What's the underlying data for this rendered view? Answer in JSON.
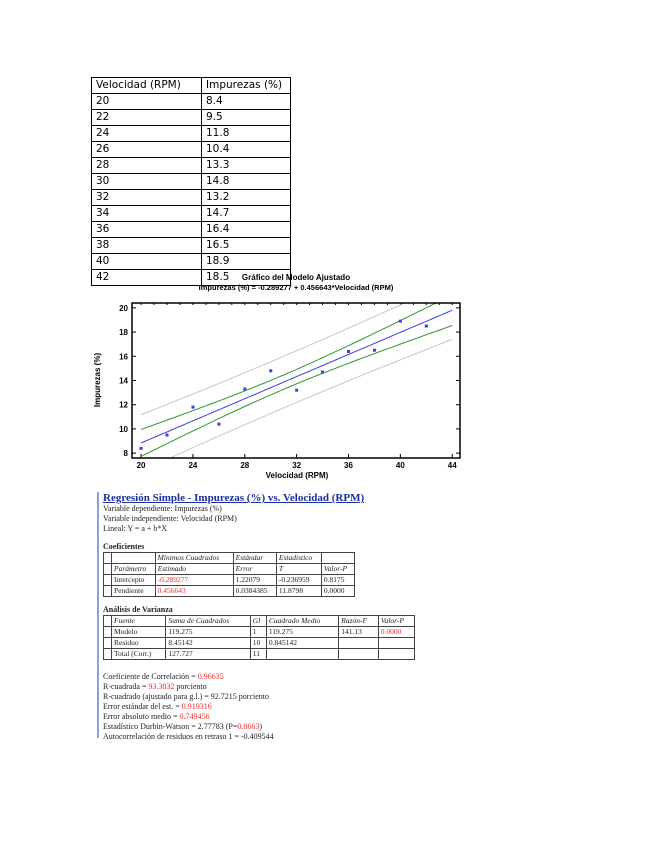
{
  "data_table": {
    "headers": [
      "Velocidad (RPM)",
      "Impurezas (%)"
    ],
    "rows": [
      [
        "20",
        "8.4"
      ],
      [
        "22",
        "9.5"
      ],
      [
        "24",
        "11.8"
      ],
      [
        "26",
        "10.4"
      ],
      [
        "28",
        "13.3"
      ],
      [
        "30",
        "14.8"
      ],
      [
        "32",
        "13.2"
      ],
      [
        "34",
        "14.7"
      ],
      [
        "36",
        "16.4"
      ],
      [
        "38",
        "16.5"
      ],
      [
        "40",
        "18.9"
      ],
      [
        "42",
        "18.5"
      ]
    ]
  },
  "chart_data": {
    "type": "scatter",
    "title": "Gráfico del Modelo Ajustado",
    "subtitle": "Impurezas (%) = -0.289277 + 0.456643*Velocidad (RPM)",
    "xlabel": "Velocidad (RPM)",
    "ylabel": "Impurezas (%)",
    "xlim": [
      19.3,
      44.6
    ],
    "ylim": [
      7.6,
      20.4
    ],
    "xticks": [
      20,
      24,
      28,
      32,
      36,
      40,
      44
    ],
    "yticks": [
      8,
      10,
      12,
      14,
      16,
      18,
      20
    ],
    "x": [
      20,
      22,
      24,
      26,
      28,
      30,
      32,
      34,
      36,
      38,
      40,
      42
    ],
    "y": [
      8.4,
      9.5,
      11.8,
      10.4,
      13.3,
      14.8,
      13.2,
      14.7,
      16.4,
      16.5,
      18.9,
      18.5
    ],
    "fit": {
      "intercept": -0.289277,
      "slope": 0.456643,
      "color": "#3b3bf0"
    },
    "confidence_band_color": "#2f9a2f",
    "prediction_band_color": "#c8c8c8",
    "point_color": "#3b3bf0"
  },
  "regression": {
    "title": "Regresión Simple - Impurezas (%) vs. Velocidad (RPM)",
    "lines": [
      "Variable dependiente: Impurezas (%)",
      "Variable independiente: Velocidad (RPM)",
      "Lineal: Y = a + b*X"
    ],
    "coef_title": "Coeficientes",
    "coef_header1": [
      "",
      "Mínimos Cuadrados",
      "Estándar",
      "Estadístico",
      ""
    ],
    "coef_header2": [
      "Parámetro",
      "Estimado",
      "Error",
      "T",
      "Valor-P"
    ],
    "coef_rows": [
      [
        "Intercepto",
        "-0.289277",
        "1.22079",
        "-0.236959",
        "0.8175"
      ],
      [
        "Pendiente",
        "0.456643",
        "0.0384385",
        "11.8798",
        "0.0000"
      ]
    ],
    "anova_title": "Análisis de Varianza",
    "anova_header": [
      "Fuente",
      "Suma de Cuadrados",
      "Gl",
      "Cuadrado Medio",
      "Razón-F",
      "Valor-P"
    ],
    "anova_rows": [
      [
        "Modelo",
        "119.275",
        "1",
        "119.275",
        "141.13",
        "0.0000"
      ],
      [
        "Residuo",
        "8.45142",
        "10",
        "0.845142",
        "",
        ""
      ],
      [
        "Total (Corr.)",
        "127.727",
        "11",
        "",
        "",
        ""
      ]
    ],
    "stats": [
      {
        "label": "Coeficiente de Correlación = ",
        "value": "0.96635",
        "suffix": ""
      },
      {
        "label": "R-cuadrada = ",
        "value": "93.3832",
        "suffix": " porciento"
      },
      {
        "label": "R-cuadrado (ajustado para g.l.) = 92.7215 porciento",
        "value": "",
        "suffix": ""
      },
      {
        "label": "Error estándar del est. = ",
        "value": "0.919316",
        "suffix": ""
      },
      {
        "label": "Error absoluto medio = ",
        "value": "0.749456",
        "suffix": ""
      },
      {
        "label": "Estadístico Durbin-Watson = 2.77783 (P=",
        "value": "0.8663",
        "suffix": ")"
      },
      {
        "label": "Autocorrelación de residuos en retraso 1 = -0.409544",
        "value": "",
        "suffix": ""
      }
    ]
  }
}
